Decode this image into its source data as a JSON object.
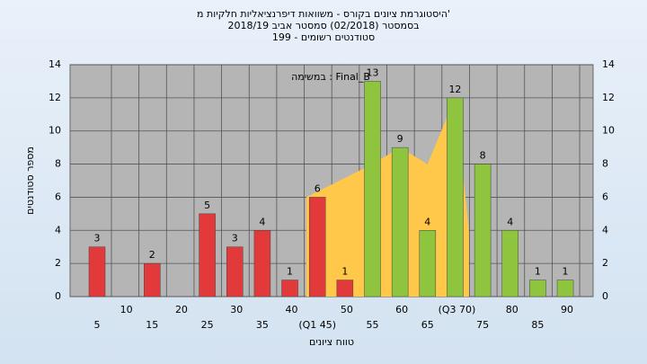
{
  "chart_data": {
    "type": "bar",
    "title": "היסטוגרמת ציונים בקורס - משוואות דיפרנציאליות חלקיות מ'",
    "subtitle": "בסמסטר  (02/2018)  סמסטר אביב 2018/19",
    "subtitle2": "סטודנטים רשומים - 199",
    "annotation": "במשימה : Final_B",
    "ylabel": "מספר סטודנטים",
    "xlabel": "טווח ציונים",
    "categories": [
      "5",
      "10",
      "15",
      "20",
      "25",
      "30",
      "35",
      "40",
      "(Q1 45)",
      "50",
      "55",
      "60",
      "65",
      "(Q3 70)",
      "75",
      "80",
      "85",
      "90"
    ],
    "values": [
      3,
      0,
      2,
      0,
      5,
      3,
      4,
      1,
      6,
      1,
      13,
      9,
      4,
      12,
      8,
      4,
      1,
      1
    ],
    "colors": [
      "#e23a3a",
      "#e23a3a",
      "#e23a3a",
      "#e23a3a",
      "#e23a3a",
      "#e23a3a",
      "#e23a3a",
      "#e23a3a",
      "#e23a3a",
      "#e23a3a",
      "#8fc43f",
      "#8fc43f",
      "#8fc43f",
      "#8fc43f",
      "#8fc43f",
      "#8fc43f",
      "#8fc43f",
      "#8fc43f"
    ],
    "area": {
      "color": "#ffc84a",
      "x": [
        43,
        55,
        60,
        65,
        70,
        72.5
      ],
      "values": [
        6,
        8,
        9,
        8,
        12,
        4
      ]
    },
    "ylim": [
      0,
      14
    ],
    "yticks": [
      0,
      2,
      4,
      6,
      8,
      10,
      12,
      14
    ],
    "grid": true
  }
}
